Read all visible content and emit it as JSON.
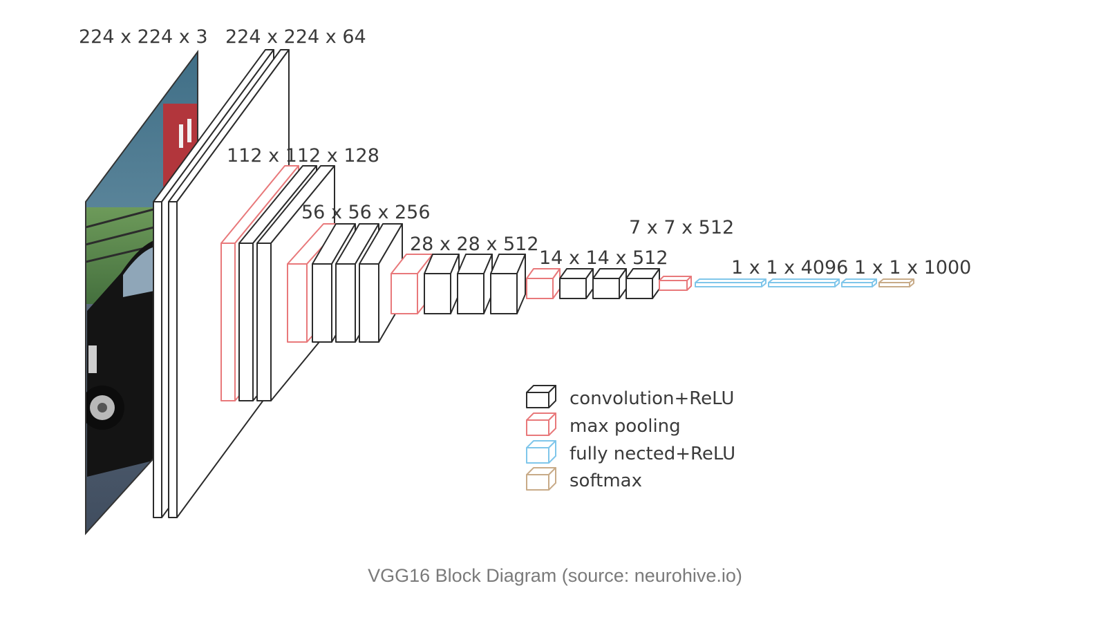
{
  "dimension_labels": {
    "input": "224 x 224 x 3",
    "conv1": "224 x 224 x 64",
    "conv2": "112 x 112 x 128",
    "conv3": "56 x 56 x 256",
    "conv4": "28 x 28 x 512",
    "conv5": "14 x 14 x 512",
    "pool5": "7 x 7 x 512",
    "fc": "1 x 1 x 4096",
    "output": "1 x 1 x 1000"
  },
  "legend": [
    {
      "type": "conv",
      "label": "convolution+ReLU",
      "color": "#2b2b2b"
    },
    {
      "type": "pool",
      "label": "max pooling",
      "color": "#e8787a"
    },
    {
      "type": "fc",
      "label": "fully nected+ReLU",
      "color": "#7fc6ea"
    },
    {
      "type": "softmax",
      "label": "softmax",
      "color": "#c8ab88"
    }
  ],
  "caption": "VGG16 Block Diagram (source: neurohive.io)"
}
